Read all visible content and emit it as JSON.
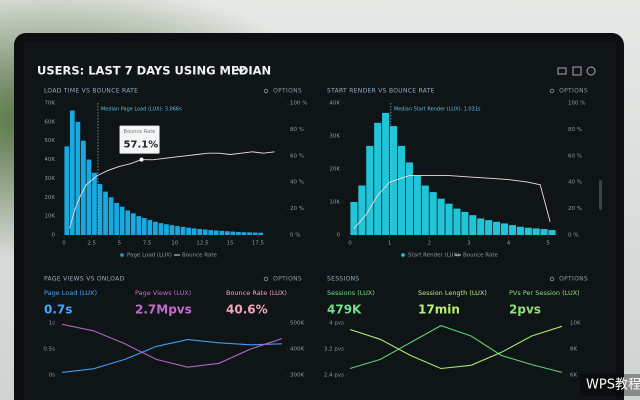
{
  "header": {
    "title": "USERS: LAST 7 DAYS USING MEDIAN"
  },
  "watermark": "WPS教程",
  "panels": [
    {
      "type": "histogram",
      "title": "LOAD TIME VS BOUNCE RATE",
      "options": "OPTIONS",
      "annotation": "Median Page Load (LUX): 3.066s",
      "median": 3.066,
      "tooltip": {
        "title": "Bounce Rate",
        "value_label": "57.1%",
        "x": 7,
        "value": 57.1
      },
      "bins": [
        0,
        0.5,
        1,
        1.5,
        2,
        2.5,
        3,
        3.5,
        4,
        4.5,
        5,
        5.5,
        6,
        6.5,
        7,
        7.5,
        8,
        8.5,
        9,
        9.5,
        10,
        10.5,
        11,
        11.5,
        12,
        12.5,
        13,
        13.5,
        14,
        14.5,
        15,
        15.5,
        16,
        16.5,
        17,
        17.5,
        18
      ],
      "series": [
        {
          "name": "Page Load (LUX)",
          "color": "#18a9e0",
          "values": [
            47000,
            66000,
            60000,
            50000,
            40000,
            33000,
            27000,
            23000,
            20000,
            17000,
            15000,
            13000,
            11500,
            10000,
            9000,
            8000,
            7000,
            6300,
            5700,
            5200,
            4700,
            4300,
            3900,
            3500,
            3200,
            2900,
            2600,
            2400,
            2200,
            2000,
            1800,
            1600,
            1500,
            1400,
            1300,
            1200
          ]
        },
        {
          "name": "Bounce Rate",
          "color": "#f3ddd6",
          "axis": "y2",
          "x": [
            0.5,
            1,
            1.5,
            2,
            3,
            4,
            5,
            6,
            7,
            8,
            9,
            10,
            11,
            12,
            13,
            14,
            15,
            16,
            17,
            18,
            19
          ],
          "values": [
            5,
            20,
            30,
            38,
            45,
            49,
            52,
            54,
            57.1,
            57,
            58,
            59,
            60,
            61,
            62,
            62,
            61,
            62,
            63,
            62,
            63
          ]
        }
      ],
      "xlim": [
        0,
        19.5
      ],
      "xticks": [
        0,
        2.5,
        5,
        7.5,
        10,
        12.5,
        15,
        17.5
      ],
      "ylim": [
        0,
        70000
      ],
      "yticks": [
        {
          "value": 0,
          "label": "0"
        },
        {
          "value": 10000,
          "label": "10K"
        },
        {
          "value": 20000,
          "label": "20K"
        },
        {
          "value": 30000,
          "label": "30K"
        },
        {
          "value": 40000,
          "label": "40K"
        },
        {
          "value": 50000,
          "label": "50K"
        },
        {
          "value": 60000,
          "label": "60K"
        },
        {
          "value": 70000,
          "label": "70K"
        }
      ],
      "y2lim": [
        0,
        100
      ],
      "y2ticks": [
        {
          "value": 0,
          "label": "0 %"
        },
        {
          "value": 20,
          "label": "20 %"
        },
        {
          "value": 40,
          "label": "40 %"
        },
        {
          "value": 60,
          "label": "60 %"
        },
        {
          "value": 80,
          "label": "80 %"
        },
        {
          "value": 100,
          "label": "100 %"
        }
      ]
    },
    {
      "type": "histogram",
      "title": "START RENDER VS BOUNCE RATE",
      "options": "OPTIONS",
      "annotation": "Median Start Render (LUX): 1.031s",
      "median": 1.031,
      "bins": [
        0,
        0.2,
        0.4,
        0.6,
        0.8,
        1,
        1.2,
        1.4,
        1.6,
        1.8,
        2,
        2.2,
        2.4,
        2.6,
        2.8,
        3,
        3.2,
        3.4,
        3.6,
        3.8,
        4,
        4.2,
        4.4,
        4.6,
        4.8,
        5,
        5.2
      ],
      "series": [
        {
          "name": "Start Render (LUX)",
          "color": "#22c4d8",
          "values": [
            10000,
            15000,
            27000,
            34000,
            37000,
            33000,
            27000,
            22000,
            18000,
            15000,
            13000,
            11000,
            9500,
            8000,
            7000,
            6000,
            5000,
            4500,
            4000,
            3500,
            3000,
            2500,
            2200,
            2000,
            1800,
            1500
          ]
        },
        {
          "name": "Bounce Rate",
          "color": "#f3ddd6",
          "axis": "y2",
          "x": [
            0.1,
            0.4,
            0.7,
            1,
            1.5,
            2,
            2.5,
            3,
            3.5,
            4,
            4.5,
            4.8,
            5.05
          ],
          "values": [
            5,
            15,
            30,
            40,
            45,
            45,
            45,
            44,
            43,
            42,
            40,
            38,
            10
          ]
        }
      ],
      "xlim": [
        0,
        5.2
      ],
      "xticks": [
        0,
        1,
        2,
        3,
        4,
        5
      ],
      "ylim": [
        0,
        40000
      ],
      "yticks": [
        {
          "value": 0,
          "label": "0"
        },
        {
          "value": 10000,
          "label": "10K"
        },
        {
          "value": 20000,
          "label": "20K"
        },
        {
          "value": 30000,
          "label": "30K"
        },
        {
          "value": 40000,
          "label": "40K"
        }
      ],
      "y2lim": [
        0,
        100
      ],
      "y2ticks": [
        {
          "value": 0,
          "label": "0 %"
        },
        {
          "value": 20,
          "label": "20 %"
        },
        {
          "value": 40,
          "label": "40 %"
        },
        {
          "value": 60,
          "label": "60 %"
        },
        {
          "value": 80,
          "label": "80 %"
        },
        {
          "value": 100,
          "label": "100 %"
        }
      ]
    },
    {
      "type": "lines",
      "title": "PAGE VIEWS VS ONLOAD",
      "options": "OPTIONS",
      "stats": [
        {
          "label": "Page Load (LUX)",
          "value": "0.7s",
          "color": "#4aa6ff"
        },
        {
          "label": "Page Views (LUX)",
          "value": "2.7Mpvs",
          "color": "#c46ccc"
        },
        {
          "label": "Bounce Rate (LUX)",
          "value": "40.6%",
          "color": "#f4a6b8"
        }
      ],
      "series": [
        {
          "color": "#3f9cf0",
          "values": [
            0.05,
            0.12,
            0.3,
            0.55,
            0.68,
            0.62,
            0.58,
            0.6
          ]
        },
        {
          "color": "#b064c0",
          "axis": "y2",
          "values": [
            495000,
            470000,
            420000,
            360000,
            330000,
            345000,
            400000,
            440000
          ]
        }
      ],
      "ylim": [
        0,
        1
      ],
      "yticks": [
        {
          "value": 0,
          "label": "0s"
        },
        {
          "value": 0.5,
          "label": "0.5s"
        },
        {
          "value": 1,
          "label": "1s"
        }
      ],
      "y2lim": [
        300000,
        500000
      ],
      "y2ticks": [
        {
          "value": 300000,
          "label": "300K"
        },
        {
          "value": 400000,
          "label": "400K"
        },
        {
          "value": 500000,
          "label": "500K"
        }
      ]
    },
    {
      "type": "lines",
      "title": "SESSIONS",
      "options": "OPTIONS",
      "stats": [
        {
          "label": "Sessions (LUX)",
          "value": "479K",
          "color": "#6ee08a"
        },
        {
          "label": "Session Length (LUX)",
          "value": "17min",
          "color": "#b8f07a"
        },
        {
          "label": "PVs Per Session (LUX)",
          "value": "2pvs",
          "color": "#8ee07a"
        }
      ],
      "series": [
        {
          "color": "#58d07a",
          "axis": "y2",
          "values": [
            6500,
            7200,
            8500,
            9800,
            9000,
            7500,
            6800,
            6200
          ]
        },
        {
          "color": "#a8e870",
          "values": [
            3.8,
            3.5,
            3.0,
            2.6,
            2.7,
            3.1,
            3.6,
            3.9
          ]
        }
      ],
      "ylim": [
        2.4,
        4
      ],
      "yticks": [
        {
          "value": 2.4,
          "label": "2.4 pvs"
        },
        {
          "value": 3.2,
          "label": "3.2 pvs"
        },
        {
          "value": 4,
          "label": "4 pvs"
        }
      ],
      "y2lim": [
        6000,
        10000
      ],
      "y2ticks": [
        {
          "value": 6000,
          "label": "6K"
        },
        {
          "value": 8000,
          "label": "8K"
        },
        {
          "value": 10000,
          "label": "10K"
        }
      ]
    }
  ]
}
